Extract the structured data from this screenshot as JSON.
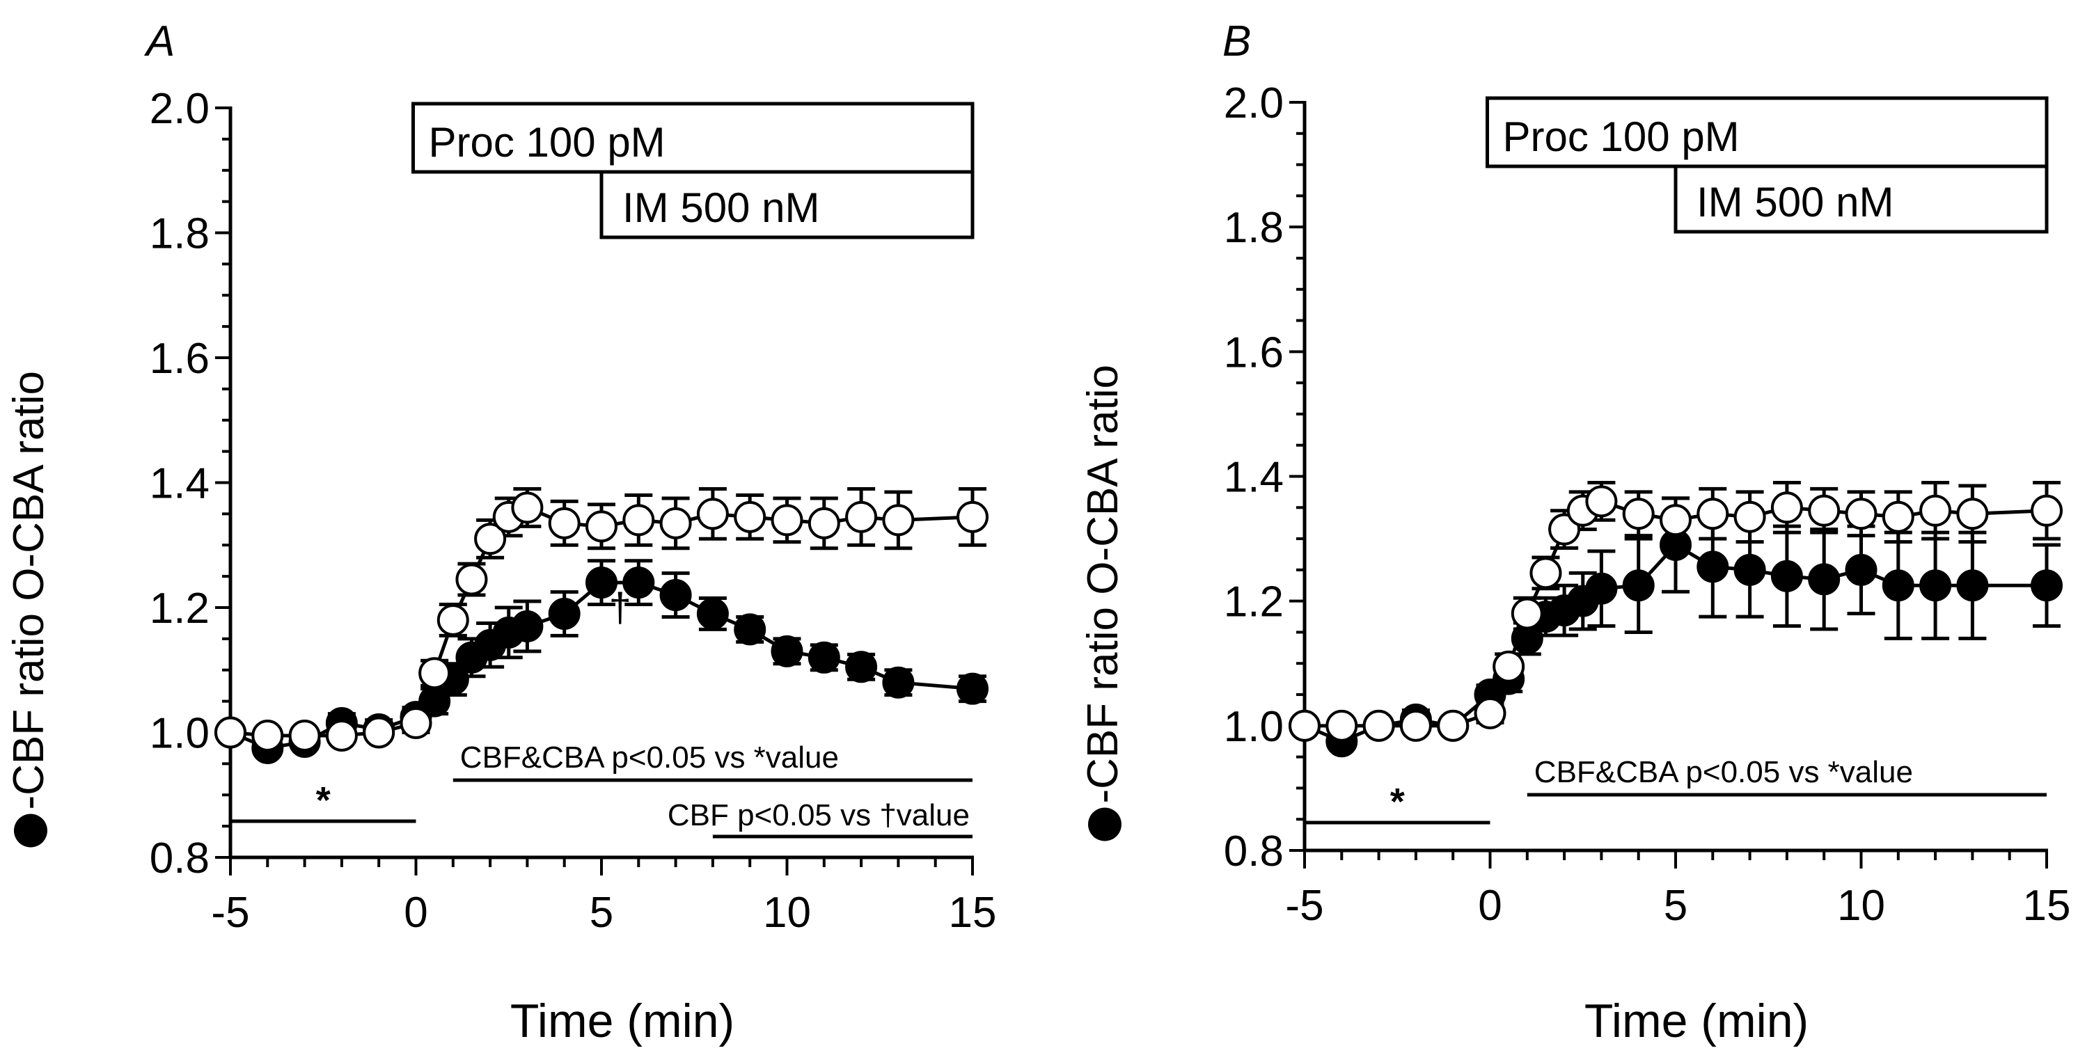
{
  "figure": {
    "x_label": "Time (min)",
    "y_label": "-CBF ratio O-CBA ratio",
    "x_ticks": [
      "-5",
      "0",
      "5",
      "10",
      "15"
    ],
    "y_ticks": [
      "0.8",
      "1.0",
      "1.2",
      "1.4",
      "1.6",
      "1.8",
      "2.0"
    ],
    "colors": {
      "cbf": "#000000",
      "cba_fill": "#ffffff",
      "axis": "#000000"
    }
  },
  "chart_data": [
    {
      "panel_label": "A",
      "type": "line",
      "xlim": [
        -5,
        15
      ],
      "ylim": [
        0.8,
        2.0
      ],
      "xlabel": "Time (min)",
      "ylabel": "-CBF ratio O-CBA ratio",
      "annotations": {
        "proc_label": "Proc 100 pM",
        "im_label": "IM 500 nM",
        "star_label": "*",
        "dagger_label": "†",
        "sig1_label": "CBF&CBA p<0.05 vs *value",
        "sig2_label": "CBF p<0.05 vs †value",
        "proc_range": [
          0,
          15
        ],
        "im_range": [
          5,
          15
        ],
        "baseline_range": [
          -5,
          0
        ],
        "sig1_range": [
          1,
          15
        ],
        "sig2_range": [
          8,
          15
        ]
      },
      "series": [
        {
          "name": "CBF ratio",
          "marker": "filled-circle",
          "x": [
            -5,
            -4,
            -3,
            -2,
            -1,
            0,
            0.5,
            1,
            1.5,
            2,
            2.5,
            3,
            4,
            5,
            6,
            7,
            8,
            9,
            10,
            11,
            12,
            13,
            15
          ],
          "y": [
            1.0,
            0.975,
            0.985,
            1.015,
            1.005,
            1.025,
            1.05,
            1.085,
            1.12,
            1.14,
            1.16,
            1.17,
            1.19,
            1.24,
            1.24,
            1.22,
            1.19,
            1.165,
            1.13,
            1.12,
            1.105,
            1.08,
            1.07
          ],
          "err": [
            0.0,
            0.01,
            0.01,
            0.015,
            0.015,
            0.015,
            0.02,
            0.025,
            0.03,
            0.035,
            0.04,
            0.04,
            0.035,
            0.035,
            0.035,
            0.035,
            0.025,
            0.02,
            0.02,
            0.02,
            0.02,
            0.02,
            0.02
          ]
        },
        {
          "name": "CBA ratio",
          "marker": "open-circle",
          "x": [
            -5,
            -4,
            -3,
            -2,
            -1,
            0,
            0.5,
            1,
            1.5,
            2,
            2.5,
            3,
            4,
            5,
            6,
            7,
            8,
            9,
            10,
            11,
            12,
            13,
            15
          ],
          "y": [
            1.0,
            0.995,
            0.995,
            0.995,
            1.0,
            1.015,
            1.095,
            1.18,
            1.245,
            1.31,
            1.345,
            1.36,
            1.335,
            1.33,
            1.34,
            1.335,
            1.35,
            1.345,
            1.34,
            1.335,
            1.345,
            1.34,
            1.345
          ],
          "err": [
            0.0,
            0.01,
            0.01,
            0.01,
            0.01,
            0.015,
            0.02,
            0.025,
            0.025,
            0.03,
            0.03,
            0.03,
            0.035,
            0.035,
            0.04,
            0.04,
            0.04,
            0.035,
            0.035,
            0.04,
            0.045,
            0.045,
            0.045
          ]
        }
      ]
    },
    {
      "panel_label": "B",
      "type": "line",
      "xlim": [
        -5,
        15
      ],
      "ylim": [
        0.8,
        2.0
      ],
      "xlabel": "Time (min)",
      "ylabel": "-CBF ratio O-CBA ratio",
      "annotations": {
        "proc_label": "Proc 100 pM",
        "im_label": "IM 500 nM",
        "star_label": "*",
        "sig1_label": "CBF&CBA  p<0.05 vs *value",
        "proc_range": [
          0,
          15
        ],
        "im_range": [
          5,
          15
        ],
        "baseline_range": [
          -5,
          0
        ],
        "sig1_range": [
          1,
          15
        ]
      },
      "series": [
        {
          "name": "CBF ratio",
          "marker": "filled-circle",
          "x": [
            -5,
            -4,
            -3,
            -2,
            -1,
            0,
            0.5,
            1,
            1.5,
            2,
            2.5,
            3,
            4,
            5,
            6,
            7,
            8,
            9,
            10,
            11,
            12,
            13,
            15
          ],
          "y": [
            1.0,
            0.975,
            1.0,
            1.01,
            1.0,
            1.05,
            1.075,
            1.14,
            1.175,
            1.185,
            1.2,
            1.22,
            1.225,
            1.29,
            1.255,
            1.25,
            1.24,
            1.235,
            1.25,
            1.225,
            1.225,
            1.225,
            1.225
          ],
          "err": [
            0.0,
            0.01,
            0.01,
            0.015,
            0.01,
            0.015,
            0.02,
            0.025,
            0.03,
            0.04,
            0.045,
            0.06,
            0.075,
            0.075,
            0.08,
            0.075,
            0.08,
            0.08,
            0.07,
            0.085,
            0.085,
            0.085,
            0.065
          ]
        },
        {
          "name": "CBA ratio",
          "marker": "open-circle",
          "x": [
            -5,
            -4,
            -3,
            -2,
            -1,
            0,
            0.5,
            1,
            1.5,
            2,
            2.5,
            3,
            4,
            5,
            6,
            7,
            8,
            9,
            10,
            11,
            12,
            13,
            15
          ],
          "y": [
            1.0,
            1.0,
            1.0,
            1.0,
            1.0,
            1.02,
            1.095,
            1.18,
            1.245,
            1.315,
            1.345,
            1.36,
            1.34,
            1.33,
            1.34,
            1.335,
            1.35,
            1.345,
            1.34,
            1.335,
            1.345,
            1.34,
            1.345
          ],
          "err": [
            0.0,
            0.01,
            0.01,
            0.01,
            0.01,
            0.015,
            0.02,
            0.025,
            0.025,
            0.03,
            0.03,
            0.03,
            0.035,
            0.035,
            0.04,
            0.04,
            0.04,
            0.035,
            0.035,
            0.04,
            0.045,
            0.045,
            0.045
          ]
        }
      ]
    }
  ]
}
